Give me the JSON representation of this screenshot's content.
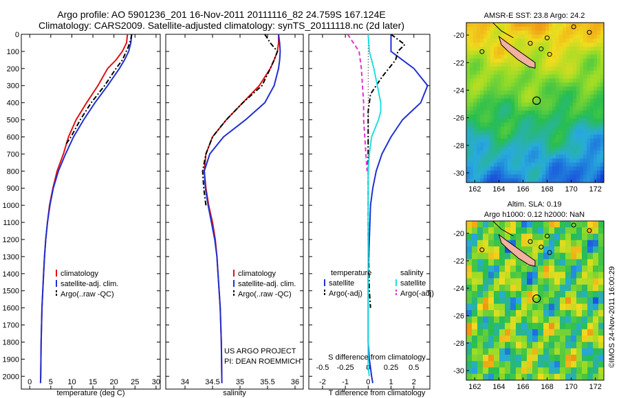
{
  "header": {
    "title": "Argo profile: AO 5901236_201 16-Nov-2011 20111116_82 24.759S 167.124E",
    "subtitle": "Climatology: CARS2009. Satellite-adjusted climatology: synTS_20111118.nc (2d later)"
  },
  "credit": {
    "project": "US ARGO PROJECT",
    "pi": "PI: DEAN ROEMMICH",
    "stamp": "©IMOS 24-Nov-2011 16:00:29"
  },
  "colors": {
    "climatology": "#e01010",
    "satellite": "#1f2fd0",
    "argo": "#000000",
    "salinity_satellite": "#20dede",
    "salinity_argo": "#e030d0",
    "island": "#f2b0a0"
  },
  "chart_data": [
    {
      "type": "line",
      "id": "temperature",
      "xlabel": "temperature (deg C)",
      "xlim": [
        -2,
        31
      ],
      "xticks": [
        0,
        5,
        10,
        15,
        20,
        25,
        30
      ],
      "ylim": [
        2075,
        0
      ],
      "yticks": [
        0,
        100,
        200,
        300,
        400,
        500,
        600,
        700,
        800,
        900,
        1000,
        1100,
        1200,
        1300,
        1400,
        1500,
        1600,
        1700,
        1800,
        1900,
        2000
      ],
      "legend": [
        "climatology",
        "satellite-adj. clim.",
        "Argo(..raw -QC)"
      ],
      "series": [
        {
          "name": "climatology",
          "color": "#e01010",
          "style": "solid",
          "x": [
            23.2,
            23.0,
            22.0,
            20.5,
            18.5,
            16.2,
            13.5,
            11.0,
            9.2,
            8.0,
            6.5,
            5.5,
            4.7,
            4.2,
            3.8,
            3.5,
            3.3,
            3.1,
            2.9,
            2.8,
            2.7,
            2.65,
            2.6,
            2.55
          ],
          "y": [
            0,
            50,
            100,
            150,
            200,
            300,
            400,
            500,
            600,
            700,
            800,
            900,
            1000,
            1100,
            1200,
            1300,
            1400,
            1500,
            1600,
            1700,
            1800,
            1900,
            2000,
            2040
          ]
        },
        {
          "name": "satellite-adj. clim.",
          "color": "#1f2fd0",
          "style": "solid",
          "x": [
            24.2,
            24.0,
            23.5,
            22.5,
            21.3,
            18.5,
            15.5,
            12.8,
            10.4,
            8.5,
            6.8,
            5.6,
            4.8,
            4.2,
            3.8,
            3.5,
            3.3,
            3.1,
            2.9,
            2.8,
            2.7,
            2.65,
            2.6,
            2.55
          ],
          "y": [
            0,
            50,
            100,
            150,
            200,
            300,
            400,
            500,
            600,
            700,
            800,
            900,
            1000,
            1100,
            1200,
            1300,
            1400,
            1500,
            1600,
            1700,
            1800,
            1900,
            2000,
            2040
          ]
        },
        {
          "name": "Argo(..raw -QC)",
          "color": "#000000",
          "style": "dashdot",
          "x": [
            24.2,
            24.0,
            23.3,
            22.0,
            20.5,
            17.8,
            14.6,
            12.0,
            9.8,
            8.4
          ],
          "y": [
            0,
            30,
            80,
            150,
            200,
            300,
            400,
            500,
            600,
            650
          ]
        }
      ]
    },
    {
      "type": "line",
      "id": "salinity",
      "xlabel": "salinity",
      "xlim": [
        33.65,
        36.15
      ],
      "xticks": [
        34,
        34.5,
        35,
        35.5,
        36
      ],
      "ylim": [
        2075,
        0
      ],
      "legend": [
        "climatology",
        "satellite-adj. clim.",
        "Argo(..raw -QC)"
      ],
      "series": [
        {
          "name": "climatology",
          "color": "#e01010",
          "style": "solid",
          "x": [
            35.7,
            35.7,
            35.68,
            35.62,
            35.55,
            35.35,
            35.05,
            34.75,
            34.5,
            34.38,
            34.35,
            34.38,
            34.43,
            34.5,
            34.55,
            34.58,
            34.6,
            34.62,
            34.64,
            34.65,
            34.66,
            34.67
          ],
          "y": [
            0,
            50,
            100,
            150,
            200,
            300,
            400,
            500,
            600,
            700,
            800,
            900,
            1000,
            1100,
            1200,
            1300,
            1400,
            1500,
            1600,
            1700,
            1800,
            2040
          ]
        },
        {
          "name": "satellite-adj. clim.",
          "color": "#1f2fd0",
          "style": "solid",
          "x": [
            35.7,
            35.72,
            35.73,
            35.72,
            35.7,
            35.62,
            35.45,
            35.1,
            34.7,
            34.45,
            34.35,
            34.37,
            34.42,
            34.48,
            34.54,
            34.58,
            34.6,
            34.62,
            34.64,
            34.65,
            34.66,
            34.67
          ],
          "y": [
            0,
            50,
            100,
            150,
            200,
            300,
            400,
            500,
            600,
            700,
            800,
            900,
            1000,
            1100,
            1200,
            1300,
            1400,
            1500,
            1600,
            1700,
            1800,
            2040
          ]
        },
        {
          "name": "Argo(..raw -QC)",
          "color": "#000000",
          "style": "dashdot",
          "x": [
            35.45,
            35.55,
            35.68,
            35.62,
            35.55,
            35.4,
            35.05,
            34.75,
            34.5,
            34.38,
            34.32,
            34.34,
            34.38
          ],
          "y": [
            0,
            50,
            100,
            150,
            200,
            300,
            400,
            500,
            600,
            700,
            800,
            900,
            1000
          ]
        }
      ]
    },
    {
      "type": "line",
      "id": "difference",
      "xlabel": "T difference from climatology",
      "xlabel_top": "S difference from climatology",
      "xlim": [
        -2.6,
        2.7
      ],
      "xticks": [
        -2,
        -1,
        0,
        1,
        2
      ],
      "xticks_salinity": [
        "-0.5",
        "-0.25",
        "0",
        "0.25",
        "0.5"
      ],
      "ylim": [
        2075,
        0
      ],
      "legend_temperature_title": "temperature",
      "legend_salinity_title": "salinity",
      "legend": [
        "satellite",
        "Argo(-adj)",
        "satellite",
        "Argo(-adj)"
      ],
      "series": [
        {
          "name": "temperature satellite",
          "color": "#1f2fd0",
          "style": "solid",
          "x": [
            1.0,
            1.0,
            1.5,
            2.0,
            2.6,
            2.3,
            1.9,
            1.5,
            1.0,
            0.6,
            0.35,
            0.2,
            0.1,
            0.05,
            0.0,
            0.0,
            0.0,
            0.0,
            0.05,
            0.1,
            0.15,
            0.2
          ],
          "y": [
            0,
            100,
            150,
            200,
            300,
            400,
            450,
            500,
            600,
            700,
            800,
            900,
            1000,
            1200,
            1400,
            1600,
            1700,
            1800,
            1900,
            1950,
            2000,
            2040
          ]
        },
        {
          "name": "temperature Argo(-adj)",
          "color": "#000000",
          "style": "dashdot",
          "x": [
            1.0,
            1.3,
            1.6,
            1.3,
            1.2,
            0.6,
            0.1,
            0.05,
            0.0,
            0.0,
            0.0,
            0.0,
            0.0,
            0.05,
            0.1
          ],
          "y": [
            0,
            30,
            60,
            100,
            150,
            250,
            350,
            400,
            450,
            500,
            600,
            800,
            1200,
            1500,
            1600
          ]
        },
        {
          "name": "salinity satellite",
          "color": "#20dede",
          "style": "solid",
          "x": [
            0.0,
            0.05,
            0.25,
            0.4,
            0.55,
            0.55,
            0.45,
            0.3,
            0.15,
            0.05,
            0.0,
            0.0,
            0.0,
            0.0,
            0.0,
            0.05
          ],
          "y": [
            0,
            100,
            200,
            300,
            400,
            450,
            500,
            550,
            600,
            700,
            800,
            1000,
            1400,
            1800,
            1950,
            2000
          ]
        },
        {
          "name": "salinity Argo(-adj)",
          "color": "#e030d0",
          "style": "dashed",
          "x": [
            -0.9,
            -0.4,
            -0.3,
            -0.25,
            -0.2,
            -0.2,
            -0.15,
            -0.1,
            -0.05
          ],
          "y": [
            0,
            100,
            200,
            300,
            400,
            500,
            600,
            700,
            800
          ]
        }
      ]
    },
    {
      "type": "heatmap",
      "id": "sst-map",
      "title": "AMSR-E SST: 23.8 Argo: 24.2",
      "xlim": [
        161.3,
        172.7
      ],
      "ylim": [
        -30.7,
        -19.1
      ],
      "xticks": [
        162,
        164,
        166,
        168,
        170,
        172
      ],
      "yticks": [
        -20,
        -22,
        -24,
        -26,
        -28,
        -30
      ],
      "marker": {
        "lon": 167.124,
        "lat": -24.759
      }
    },
    {
      "type": "heatmap",
      "id": "sla-map",
      "title": "Altim. SLA: 0.19",
      "title2": "Argo h1000: 0.12 h2000: NaN",
      "xlim": [
        161.3,
        172.7
      ],
      "ylim": [
        -30.7,
        -19.1
      ],
      "xticks": [
        162,
        164,
        166,
        168,
        170,
        172
      ],
      "yticks": [
        -20,
        -22,
        -24,
        -26,
        -28,
        -30
      ],
      "marker": {
        "lon": 167.124,
        "lat": -24.759
      }
    }
  ]
}
